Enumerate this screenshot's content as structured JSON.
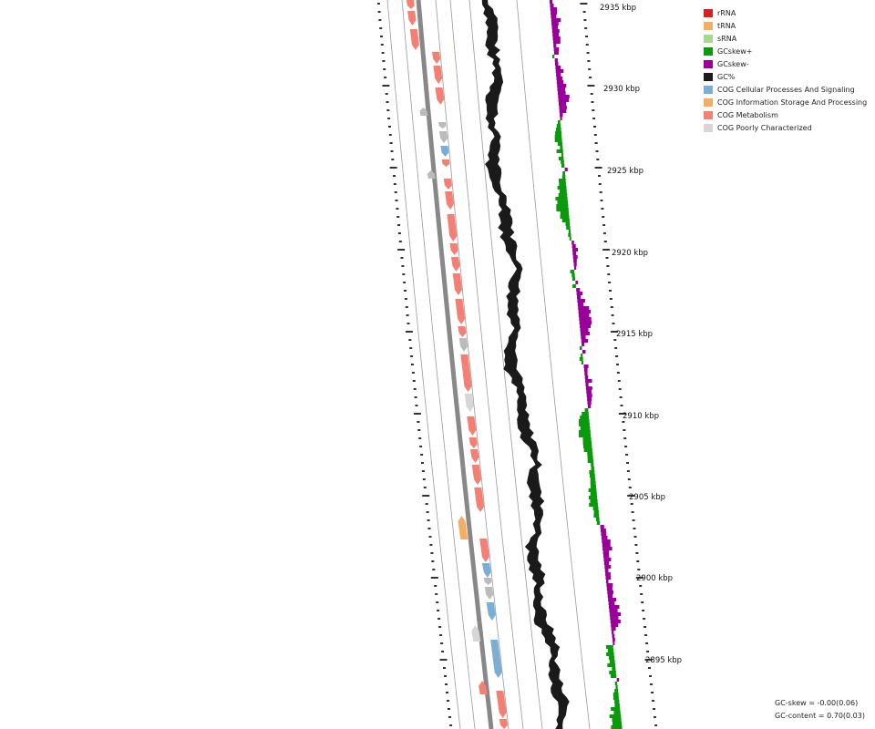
{
  "legend": {
    "items": [
      {
        "label": "rRNA",
        "color": "#d91f1f"
      },
      {
        "label": "tRNA",
        "color": "#f6ad63"
      },
      {
        "label": "sRNA",
        "color": "#a6d88f"
      },
      {
        "label": "GCskew+",
        "color": "#0b9a0b"
      },
      {
        "label": "GCskew-",
        "color": "#990099"
      },
      {
        "label": "GC%",
        "color": "#1a1a1a"
      },
      {
        "label": "COG Cellular Processes And Signaling",
        "color": "#7aaed6"
      },
      {
        "label": "COG Information Storage And Processing",
        "color": "#f6ad63"
      },
      {
        "label": "COG Metabolism",
        "color": "#f47f72"
      },
      {
        "label": "COG Poorly Characterized",
        "color": "#d6d6d6"
      }
    ]
  },
  "ruler": {
    "unit": "kbp",
    "labels": [
      "2935 kbp",
      "2930 kbp",
      "2925 kbp",
      "2920 kbp",
      "2915 kbp",
      "2910 kbp",
      "2905 kbp",
      "2900 kbp",
      "2895 kbp"
    ]
  },
  "stats": {
    "gc_skew": "GC-skew = -0.00(0.06)",
    "gc_content": "GC-content = 0.70(0.03)"
  },
  "colors": {
    "backbone": "#888888",
    "ring_line": "#999999",
    "tick": "#000000",
    "unknown_feature": "#bbbbbb"
  }
}
